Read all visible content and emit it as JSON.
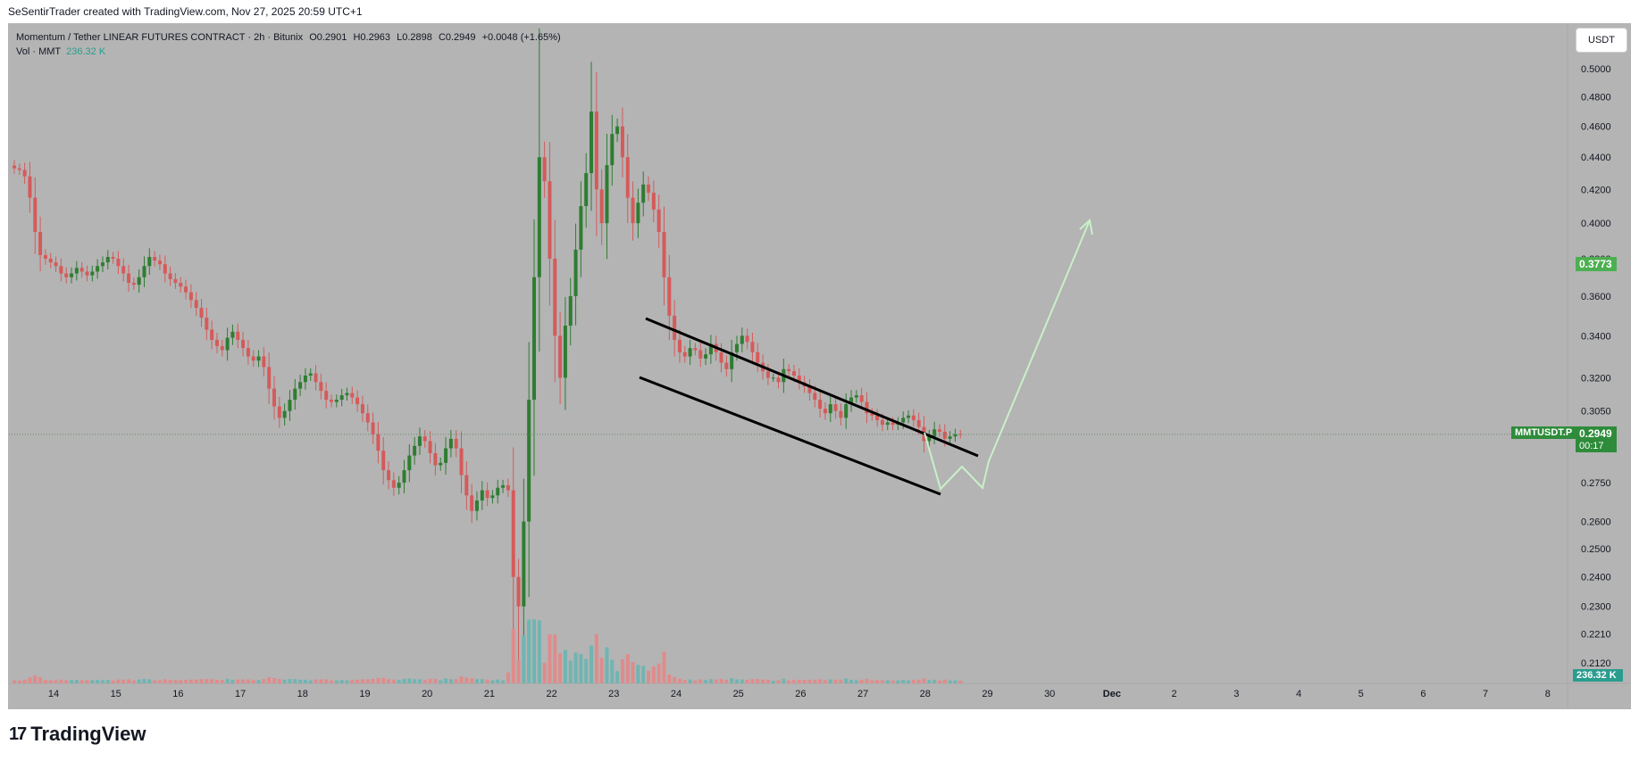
{
  "header": {
    "credit": "SeSentirTrader created with TradingView.com, Nov 27, 2025 20:59 UTC+1"
  },
  "legend": {
    "title": "Momentum / Tether LINEAR FUTURES CONTRACT · 2h · Bitunix",
    "open": "O0.2901",
    "high": "H0.2963",
    "low": "L0.2898",
    "close": "C0.2949",
    "change": "+0.0048 (+1.65%)",
    "vol_label": "Vol · MMT",
    "vol_value": "236.32 K"
  },
  "currency_button": "USDT",
  "tags": {
    "symbol": "MMTUSDT.P",
    "last_price": "0.2949",
    "countdown": "00:17",
    "level_price": "0.3773",
    "volume": "236.32 K"
  },
  "footer": {
    "brand": "TradingView"
  },
  "colors": {
    "up": "#2e7d32",
    "down": "#d65a5a",
    "vol_up": "#6fb5b2",
    "vol_down": "#e08b8b",
    "background": "#b4b4b4",
    "channel": "#000000",
    "projection": "#c8f0c8",
    "last_price_tag": "#2e8b3a",
    "level_tag": "#4caf50",
    "volume_tag": "#2a9d8f"
  },
  "chart_data": {
    "type": "candlestick",
    "symbol": "MMTUSDT.P",
    "timeframe": "2h",
    "x_ticks": [
      "14",
      "15",
      "16",
      "17",
      "18",
      "19",
      "20",
      "21",
      "22",
      "23",
      "24",
      "25",
      "26",
      "27",
      "28",
      "29",
      "30",
      "Dec",
      "2",
      "3",
      "4",
      "5",
      "6",
      "7",
      "8"
    ],
    "y_ticks": [
      "0.5000",
      "0.4800",
      "0.4600",
      "0.4400",
      "0.4200",
      "0.4000",
      "0.3800",
      "0.3600",
      "0.3400",
      "0.3200",
      "0.3050",
      "0.2750",
      "0.2600",
      "0.2500",
      "0.2400",
      "0.2300",
      "0.2210",
      "0.2120"
    ],
    "y_scale": "log",
    "ylim": [
      0.208,
      0.53
    ],
    "last_price": 0.2949,
    "closes": [
      0.433,
      0.432,
      0.428,
      0.415,
      0.395,
      0.382,
      0.38,
      0.378,
      0.376,
      0.372,
      0.37,
      0.372,
      0.375,
      0.373,
      0.371,
      0.373,
      0.376,
      0.378,
      0.381,
      0.38,
      0.376,
      0.372,
      0.367,
      0.366,
      0.37,
      0.376,
      0.381,
      0.379,
      0.377,
      0.372,
      0.369,
      0.367,
      0.365,
      0.362,
      0.358,
      0.354,
      0.349,
      0.343,
      0.338,
      0.335,
      0.333,
      0.339,
      0.342,
      0.338,
      0.334,
      0.33,
      0.328,
      0.33,
      0.325,
      0.315,
      0.307,
      0.302,
      0.305,
      0.31,
      0.315,
      0.318,
      0.321,
      0.322,
      0.318,
      0.314,
      0.31,
      0.309,
      0.31,
      0.312,
      0.313,
      0.311,
      0.308,
      0.304,
      0.3,
      0.295,
      0.288,
      0.28,
      0.276,
      0.273,
      0.275,
      0.28,
      0.286,
      0.29,
      0.294,
      0.292,
      0.287,
      0.282,
      0.283,
      0.289,
      0.293,
      0.289,
      0.278,
      0.27,
      0.264,
      0.268,
      0.272,
      0.269,
      0.27,
      0.273,
      0.274,
      0.272,
      0.24,
      0.23,
      0.26,
      0.31,
      0.37,
      0.44,
      0.425,
      0.38,
      0.34,
      0.32,
      0.345,
      0.36,
      0.385,
      0.41,
      0.43,
      0.47,
      0.42,
      0.4,
      0.435,
      0.455,
      0.46,
      0.44,
      0.415,
      0.4,
      0.412,
      0.423,
      0.418,
      0.408,
      0.395,
      0.37,
      0.35,
      0.338,
      0.332,
      0.33,
      0.334,
      0.333,
      0.329,
      0.331,
      0.336,
      0.332,
      0.327,
      0.324,
      0.332,
      0.336,
      0.34,
      0.337,
      0.332,
      0.327,
      0.323,
      0.32,
      0.32,
      0.318,
      0.324,
      0.323,
      0.321,
      0.318,
      0.316,
      0.313,
      0.31,
      0.306,
      0.304,
      0.308,
      0.305,
      0.302,
      0.308,
      0.311,
      0.312,
      0.309,
      0.304,
      0.303,
      0.301,
      0.299,
      0.3,
      0.299,
      0.3,
      0.302,
      0.303,
      0.301,
      0.298,
      0.292,
      0.294,
      0.297,
      0.296,
      0.293,
      0.294,
      0.295,
      0.2949
    ],
    "volume_last": "236.32 K",
    "annotations": [
      {
        "type": "descending-channel",
        "upper": {
          "from": [
            "Nov 23",
            0.349
          ],
          "to": [
            "Nov 29",
            0.289
          ]
        },
        "lower": {
          "from": [
            "Nov 23",
            0.318
          ],
          "to": [
            "Nov 28",
            0.27
          ]
        }
      },
      {
        "type": "projection-path",
        "points": [
          [
            "Nov 28",
            0.296
          ],
          [
            "Nov 28",
            0.274
          ],
          [
            "Nov 28",
            0.283
          ],
          [
            "Nov 29",
            0.273
          ],
          [
            "Nov 29",
            0.288
          ],
          [
            "Nov 30",
            0.4
          ]
        ]
      }
    ]
  }
}
